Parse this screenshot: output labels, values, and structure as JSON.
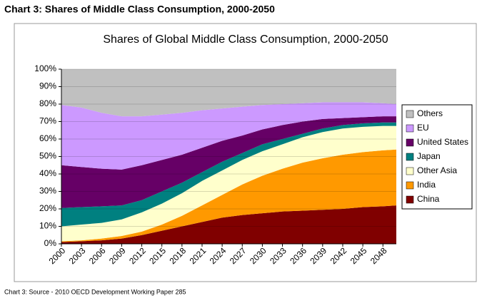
{
  "page_title": "Chart 3: Shares of Middle Class Consumption, 2000-2050",
  "source": "Chart 3: Source - 2010 OECD Development Working Paper 285",
  "chart_data": {
    "type": "stacked_area",
    "title": "Shares of Global Middle Class Consumption, 2000-2050",
    "x": [
      2000,
      2003,
      2006,
      2009,
      2012,
      2015,
      2018,
      2021,
      2024,
      2027,
      2030,
      2033,
      2036,
      2039,
      2042,
      2045,
      2048,
      2050
    ],
    "xlim": [
      2000,
      2050
    ],
    "xticks": [
      2000,
      2003,
      2006,
      2009,
      2012,
      2015,
      2018,
      2021,
      2024,
      2027,
      2030,
      2033,
      2036,
      2039,
      2042,
      2045,
      2048
    ],
    "ylim": [
      0,
      100
    ],
    "yticks": [
      {
        "value": 0,
        "label": "0%"
      },
      {
        "value": 10,
        "label": "10%"
      },
      {
        "value": 20,
        "label": "20%"
      },
      {
        "value": 30,
        "label": "30%"
      },
      {
        "value": 40,
        "label": "40%"
      },
      {
        "value": 50,
        "label": "50%"
      },
      {
        "value": 60,
        "label": "60%"
      },
      {
        "value": 70,
        "label": "70%"
      },
      {
        "value": 80,
        "label": "80%"
      },
      {
        "value": 90,
        "label": "90%"
      },
      {
        "value": 100,
        "label": "100%"
      }
    ],
    "grid": true,
    "legend": "right",
    "series": [
      {
        "name": "China",
        "color": "#800000",
        "values": [
          1,
          1.5,
          2,
          3,
          5,
          7.5,
          10,
          12.5,
          15,
          16.5,
          17.5,
          18.5,
          19,
          19.5,
          20,
          21,
          21.5,
          22
        ]
      },
      {
        "name": "India",
        "color": "#ff9900",
        "values": [
          0.5,
          0.5,
          1,
          1.5,
          2,
          3.5,
          6,
          9.5,
          13,
          17.5,
          21.5,
          24.5,
          27.5,
          29.5,
          31,
          31.5,
          32,
          32
        ]
      },
      {
        "name": "Other Asia",
        "color": "#ffffcc",
        "values": [
          8.5,
          9,
          9,
          9.5,
          11,
          12,
          13,
          14,
          14,
          14,
          14,
          14,
          14.5,
          15,
          15,
          14.5,
          14,
          13.5
        ]
      },
      {
        "name": "Japan",
        "color": "#008080",
        "values": [
          10.5,
          10,
          9.5,
          8,
          7,
          7,
          6,
          5,
          5,
          4,
          4,
          3,
          2,
          2,
          2,
          2,
          2,
          2
        ]
      },
      {
        "name": "United States",
        "color": "#660066",
        "values": [
          24.5,
          23,
          21.5,
          20.5,
          20,
          18,
          16,
          14,
          12,
          10,
          8.5,
          8,
          7,
          5.5,
          4,
          3.5,
          3.5,
          3.5
        ]
      },
      {
        "name": "EU",
        "color": "#cc99ff",
        "values": [
          34.5,
          34,
          32,
          30.5,
          28,
          26,
          24,
          21.5,
          18.5,
          16.5,
          14,
          12,
          10.5,
          9.5,
          9,
          8.5,
          7.5,
          7
        ]
      },
      {
        "name": "Others",
        "color": "#c0c0c0",
        "values": [
          20.5,
          22,
          25,
          27,
          27,
          26,
          25,
          23.5,
          22.5,
          21.5,
          20.5,
          20,
          19.5,
          19,
          19,
          19,
          19.5,
          20
        ]
      }
    ]
  }
}
